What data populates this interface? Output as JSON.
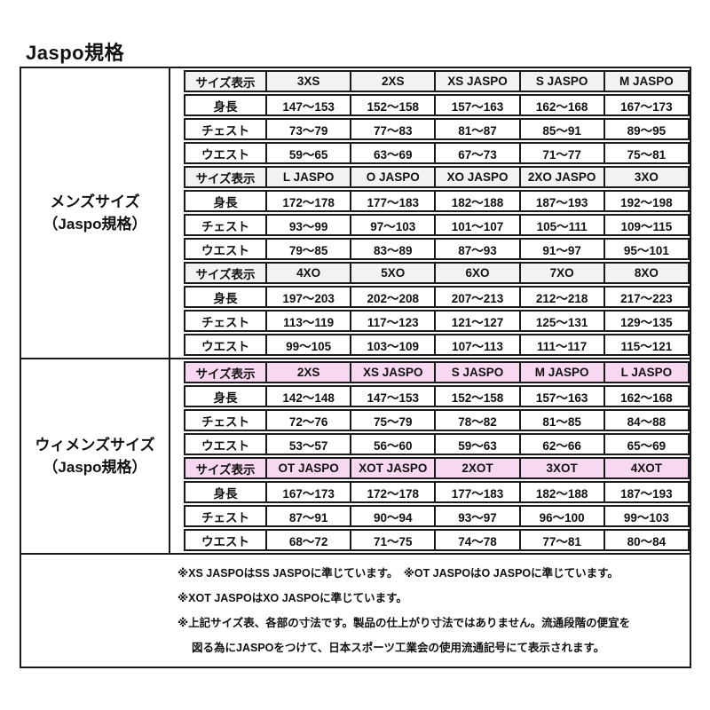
{
  "title": "Jaspo規格",
  "colors": {
    "border": "#1a1a1a",
    "text": "#111111",
    "mens_header_bg": "#f2f2f2",
    "womens_header_bg": "#f8d8f0"
  },
  "sections": [
    {
      "id": "mens",
      "label_line1": "メンズサイズ",
      "label_line2": "（Jaspo規格）",
      "header_bg": "#f2f2f2",
      "blocks": [
        {
          "rows": [
            {
              "label": "サイズ表示",
              "header": true,
              "cells": [
                "3XS",
                "2XS",
                "XS JASPO",
                "S JASPO",
                "M JASPO"
              ]
            },
            {
              "label": "身長",
              "header": false,
              "cells": [
                "147〜153",
                "152〜158",
                "157〜163",
                "162〜168",
                "167〜173"
              ]
            },
            {
              "label": "チェスト",
              "header": false,
              "cells": [
                "73〜79",
                "77〜83",
                "81〜87",
                "85〜91",
                "89〜95"
              ]
            },
            {
              "label": "ウエスト",
              "header": false,
              "cells": [
                "59〜65",
                "63〜69",
                "67〜73",
                "71〜77",
                "75〜81"
              ]
            }
          ]
        },
        {
          "rows": [
            {
              "label": "サイズ表示",
              "header": true,
              "cells": [
                "L JASPO",
                "O JASPO",
                "XO JASPO",
                "2XO JASPO",
                "3XO"
              ]
            },
            {
              "label": "身長",
              "header": false,
              "cells": [
                "172〜178",
                "177〜183",
                "182〜188",
                "187〜193",
                "192〜198"
              ]
            },
            {
              "label": "チェスト",
              "header": false,
              "cells": [
                "93〜99",
                "97〜103",
                "101〜107",
                "105〜111",
                "109〜115"
              ]
            },
            {
              "label": "ウエスト",
              "header": false,
              "cells": [
                "79〜85",
                "83〜89",
                "87〜93",
                "91〜97",
                "95〜101"
              ]
            }
          ]
        },
        {
          "rows": [
            {
              "label": "サイズ表示",
              "header": true,
              "cells": [
                "4XO",
                "5XO",
                "6XO",
                "7XO",
                "8XO"
              ]
            },
            {
              "label": "身長",
              "header": false,
              "cells": [
                "197〜203",
                "202〜208",
                "207〜213",
                "212〜218",
                "217〜223"
              ]
            },
            {
              "label": "チェスト",
              "header": false,
              "cells": [
                "113〜119",
                "117〜123",
                "121〜127",
                "125〜131",
                "129〜135"
              ]
            },
            {
              "label": "ウエスト",
              "header": false,
              "cells": [
                "99〜105",
                "103〜109",
                "107〜113",
                "111〜117",
                "115〜121"
              ]
            }
          ]
        }
      ]
    },
    {
      "id": "womens",
      "label_line1": "ウィメンズサイズ",
      "label_line2": "（Jaspo規格）",
      "header_bg": "#f8d8f0",
      "blocks": [
        {
          "rows": [
            {
              "label": "サイズ表示",
              "header": true,
              "cells": [
                "2XS",
                "XS JASPO",
                "S JASPO",
                "M JASPO",
                "L JASPO"
              ]
            },
            {
              "label": "身長",
              "header": false,
              "cells": [
                "142〜148",
                "147〜153",
                "152〜158",
                "157〜163",
                "162〜168"
              ]
            },
            {
              "label": "チェスト",
              "header": false,
              "cells": [
                "72〜76",
                "75〜79",
                "78〜82",
                "81〜85",
                "84〜88"
              ]
            },
            {
              "label": "ウエスト",
              "header": false,
              "cells": [
                "53〜57",
                "56〜60",
                "59〜63",
                "62〜66",
                "65〜69"
              ]
            }
          ]
        },
        {
          "rows": [
            {
              "label": "サイズ表示",
              "header": true,
              "cells": [
                "OT JASPO",
                "XOT JASPO",
                "2XOT",
                "3XOT",
                "4XOT"
              ]
            },
            {
              "label": "身長",
              "header": false,
              "cells": [
                "167〜173",
                "172〜178",
                "177〜183",
                "182〜188",
                "187〜193"
              ]
            },
            {
              "label": "チェスト",
              "header": false,
              "cells": [
                "87〜91",
                "90〜94",
                "93〜97",
                "96〜100",
                "99〜103"
              ]
            },
            {
              "label": "ウエスト",
              "header": false,
              "cells": [
                "68〜72",
                "71〜75",
                "74〜78",
                "77〜81",
                "80〜84"
              ]
            }
          ]
        }
      ]
    }
  ],
  "notes": [
    "※XS JASPOはSS JASPOに準じています。　※OT JASPOはO JASPOに準じています。",
    "※XOT JASPOはXO JASPOに準じています。",
    "※上記サイズ表、各部の寸法です。製品の仕上がり寸法ではありません。流通段階の便宜を",
    "図る為にJASPOをつけて、日本スポーツ工業会の使用流通記号にて表示されます。"
  ]
}
